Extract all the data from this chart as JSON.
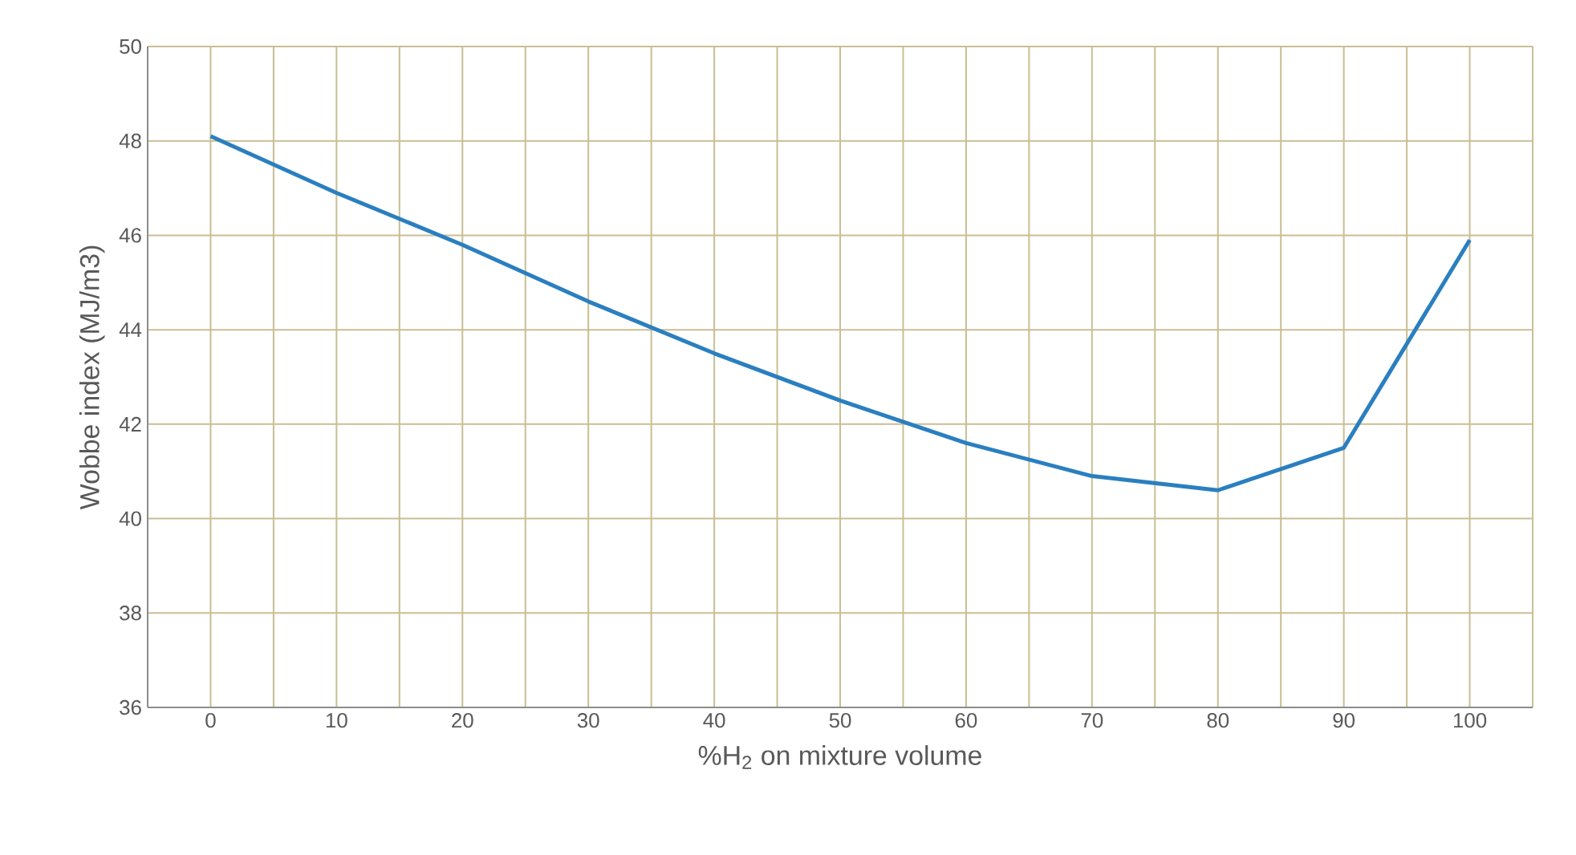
{
  "chart_data": {
    "type": "line",
    "xlabel": "%H$_{2}$ on mixture volume",
    "ylabel": "Wobbe index (MJ/m3)",
    "x": [
      0,
      10,
      20,
      30,
      40,
      50,
      60,
      70,
      80,
      90,
      100
    ],
    "series": [
      {
        "color": "#2a7fc0",
        "values": [
          48.1,
          46.9,
          45.8,
          44.6,
          43.5,
          42.5,
          41.6,
          40.9,
          40.6,
          41.5,
          45.9
        ]
      }
    ],
    "xlim": [
      -5,
      105
    ],
    "xticks": [
      {
        "value": -5,
        "label": null
      },
      0,
      {
        "value": 5,
        "label": null
      },
      10,
      {
        "value": 15,
        "label": null
      },
      20,
      {
        "value": 25,
        "label": null
      },
      30,
      {
        "value": 35,
        "label": null
      },
      40,
      {
        "value": 45,
        "label": null
      },
      50,
      {
        "value": 55,
        "label": null
      },
      60,
      {
        "value": 65,
        "label": null
      },
      70,
      {
        "value": 75,
        "label": null
      },
      80,
      {
        "value": 85,
        "label": null
      },
      90,
      {
        "value": 95,
        "label": null
      },
      100,
      {
        "value": 105,
        "label": null
      }
    ],
    "ylim": [
      36,
      50
    ],
    "yticks": [
      36,
      38,
      40,
      42,
      44,
      46,
      48,
      50
    ],
    "grid": true,
    "marker": "none",
    "line_style": "solid"
  }
}
